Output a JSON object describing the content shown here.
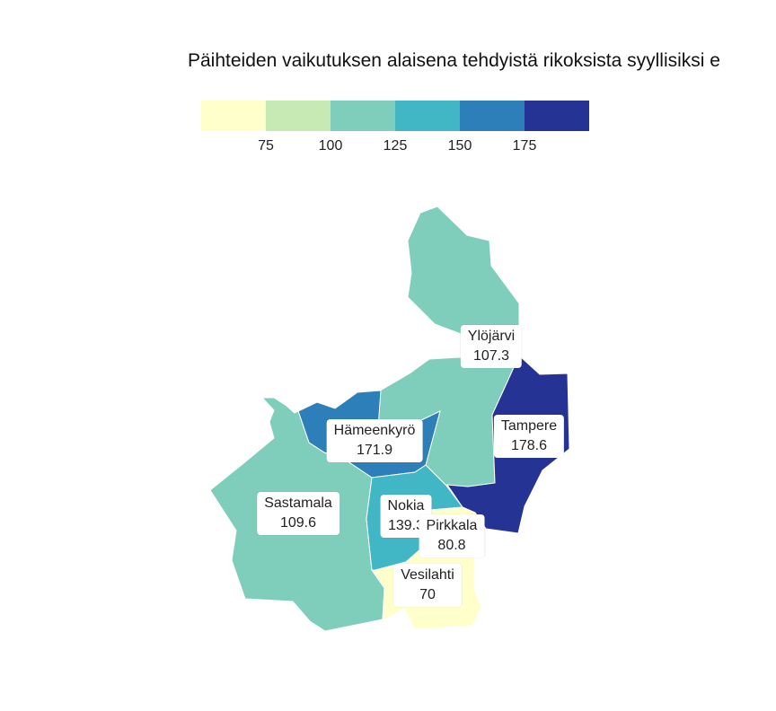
{
  "title": "Päihteiden vaikutuksen alaisena tehdyistä rikoksista syyllisiksi e",
  "legend": {
    "colors": [
      "#ffffcc",
      "#c7e9b4",
      "#7fcdbb",
      "#41b6c4",
      "#2c7fb8",
      "#253494"
    ],
    "ticks": [
      "75",
      "100",
      "125",
      "150",
      "175"
    ]
  },
  "municipalities": [
    {
      "name": "Ylöjärvi",
      "value": "107.3",
      "color": "#7fcdbb"
    },
    {
      "name": "Tampere",
      "value": "178.6",
      "color": "#253494"
    },
    {
      "name": "Hämeenkyrö",
      "value": "171.9",
      "color": "#2c7fb8"
    },
    {
      "name": "Sastamala",
      "value": "109.6",
      "color": "#7fcdbb"
    },
    {
      "name": "Nokia",
      "value": "139.3",
      "color": "#41b6c4"
    },
    {
      "name": "Pirkkala",
      "value": "80.8",
      "color": "#ffffcc"
    },
    {
      "name": "Vesilahti",
      "value": "70",
      "color": "#ffffcc"
    }
  ]
}
